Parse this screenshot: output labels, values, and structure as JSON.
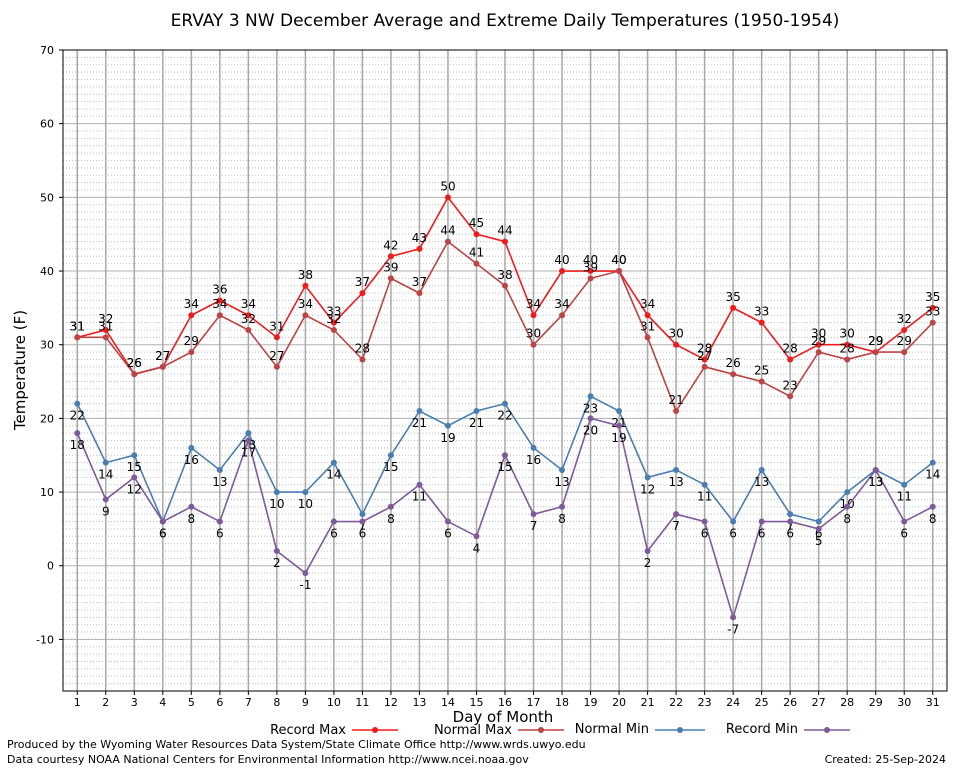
{
  "chart_data": {
    "type": "line",
    "title": "ERVAY 3 NW December Average and Extreme Daily Temperatures (1950-1954)",
    "xlabel": "Day of Month",
    "ylabel": "Temperature (F)",
    "x": [
      1,
      2,
      3,
      4,
      5,
      6,
      7,
      8,
      9,
      10,
      11,
      12,
      13,
      14,
      15,
      16,
      17,
      18,
      19,
      20,
      21,
      22,
      23,
      24,
      25,
      26,
      27,
      28,
      29,
      30,
      31
    ],
    "xlim": [
      0.5,
      31.5
    ],
    "ylim": [
      -17,
      70
    ],
    "yticks": [
      -10,
      0,
      10,
      20,
      30,
      40,
      50,
      60,
      70
    ],
    "grid": true,
    "legend_position": "bottom",
    "series": [
      {
        "name": "Record Max",
        "color": "#ee1c1c",
        "label_pos": "above",
        "values": [
          31,
          32,
          26,
          27,
          34,
          36,
          34,
          31,
          38,
          33,
          37,
          42,
          43,
          50,
          45,
          44,
          34,
          40,
          40,
          40,
          34,
          30,
          28,
          35,
          33,
          28,
          30,
          30,
          29,
          32,
          35
        ]
      },
      {
        "name": "Normal Max",
        "color": "#bb4444",
        "label_pos": "above",
        "values": [
          31,
          31,
          26,
          27,
          29,
          34,
          32,
          27,
          34,
          32,
          28,
          39,
          37,
          44,
          41,
          38,
          30,
          34,
          39,
          40,
          31,
          21,
          27,
          26,
          25,
          23,
          29,
          28,
          29,
          29,
          33
        ]
      },
      {
        "name": "Normal Min",
        "color": "#4a7eb0",
        "label_pos": "below",
        "values": [
          22,
          14,
          15,
          6,
          16,
          13,
          18,
          10,
          10,
          14,
          7,
          15,
          21,
          19,
          21,
          22,
          16,
          13,
          23,
          21,
          12,
          13,
          11,
          6,
          13,
          7,
          6,
          10,
          13,
          11,
          14
        ]
      },
      {
        "name": "Record Min",
        "color": "#7f5a9a",
        "label_pos": "below",
        "values": [
          18,
          9,
          12,
          6,
          8,
          6,
          17,
          2,
          -1,
          6,
          6,
          8,
          11,
          6,
          4,
          15,
          7,
          8,
          20,
          19,
          2,
          7,
          6,
          -7,
          6,
          6,
          5,
          8,
          13,
          6,
          8
        ]
      }
    ]
  },
  "footer": {
    "left1": "Produced by the Wyoming Water Resources Data System/State Climate Office http://www.wrds.uwyo.edu",
    "left2": "Data courtesy NOAA National Centers for Environmental Information http://www.ncei.noaa.gov",
    "created": "Created:  25-Sep-2024"
  }
}
